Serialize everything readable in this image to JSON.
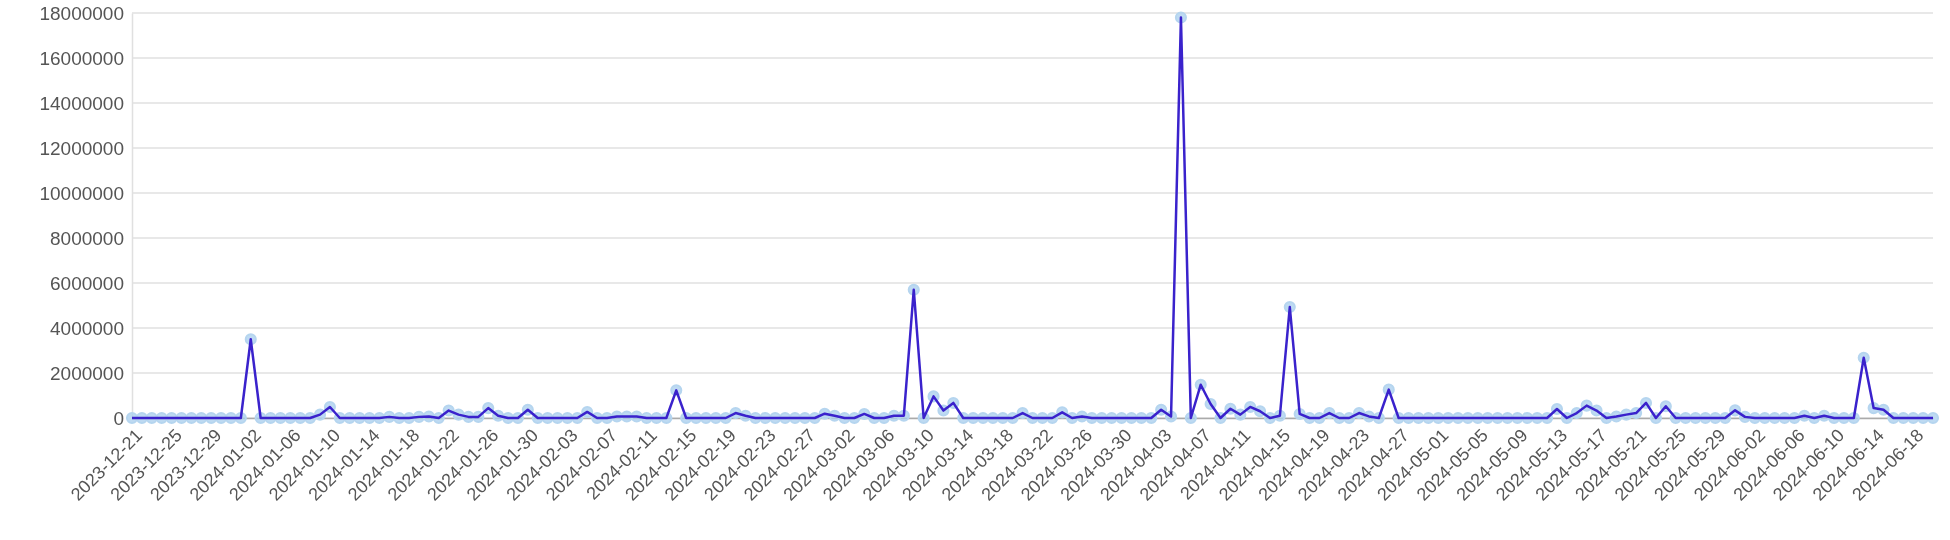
{
  "chart_data": {
    "type": "line",
    "x": [
      "2023-12-21",
      "2023-12-22",
      "2023-12-23",
      "2023-12-24",
      "2023-12-25",
      "2023-12-26",
      "2023-12-27",
      "2023-12-28",
      "2023-12-29",
      "2023-12-30",
      "2023-12-31",
      "2024-01-01",
      "2024-01-02",
      "2024-01-03",
      "2024-01-04",
      "2024-01-05",
      "2024-01-06",
      "2024-01-07",
      "2024-01-08",
      "2024-01-09",
      "2024-01-10",
      "2024-01-11",
      "2024-01-12",
      "2024-01-13",
      "2024-01-14",
      "2024-01-15",
      "2024-01-16",
      "2024-01-17",
      "2024-01-18",
      "2024-01-19",
      "2024-01-20",
      "2024-01-21",
      "2024-01-22",
      "2024-01-23",
      "2024-01-24",
      "2024-01-25",
      "2024-01-26",
      "2024-01-27",
      "2024-01-28",
      "2024-01-29",
      "2024-01-30",
      "2024-01-31",
      "2024-02-01",
      "2024-02-02",
      "2024-02-03",
      "2024-02-04",
      "2024-02-05",
      "2024-02-06",
      "2024-02-07",
      "2024-02-08",
      "2024-02-09",
      "2024-02-10",
      "2024-02-11",
      "2024-02-12",
      "2024-02-13",
      "2024-02-14",
      "2024-02-15",
      "2024-02-16",
      "2024-02-17",
      "2024-02-18",
      "2024-02-19",
      "2024-02-20",
      "2024-02-21",
      "2024-02-22",
      "2024-02-23",
      "2024-02-24",
      "2024-02-25",
      "2024-02-26",
      "2024-02-27",
      "2024-02-28",
      "2024-02-29",
      "2024-03-01",
      "2024-03-02",
      "2024-03-03",
      "2024-03-04",
      "2024-03-05",
      "2024-03-06",
      "2024-03-07",
      "2024-03-08",
      "2024-03-09",
      "2024-03-10",
      "2024-03-11",
      "2024-03-12",
      "2024-03-13",
      "2024-03-14",
      "2024-03-15",
      "2024-03-16",
      "2024-03-17",
      "2024-03-18",
      "2024-03-19",
      "2024-03-20",
      "2024-03-21",
      "2024-03-22",
      "2024-03-23",
      "2024-03-24",
      "2024-03-25",
      "2024-03-26",
      "2024-03-27",
      "2024-03-28",
      "2024-03-29",
      "2024-03-30",
      "2024-03-31",
      "2024-04-01",
      "2024-04-02",
      "2024-04-03",
      "2024-04-04",
      "2024-04-05",
      "2024-04-06",
      "2024-04-07",
      "2024-04-08",
      "2024-04-09",
      "2024-04-10",
      "2024-04-11",
      "2024-04-12",
      "2024-04-13",
      "2024-04-14",
      "2024-04-15",
      "2024-04-16",
      "2024-04-17",
      "2024-04-18",
      "2024-04-19",
      "2024-04-20",
      "2024-04-21",
      "2024-04-22",
      "2024-04-23",
      "2024-04-24",
      "2024-04-25",
      "2024-04-26",
      "2024-04-27",
      "2024-04-28",
      "2024-04-29",
      "2024-04-30",
      "2024-05-01",
      "2024-05-02",
      "2024-05-03",
      "2024-05-04",
      "2024-05-05",
      "2024-05-06",
      "2024-05-07",
      "2024-05-08",
      "2024-05-09",
      "2024-05-10",
      "2024-05-11",
      "2024-05-12",
      "2024-05-13",
      "2024-05-14",
      "2024-05-15",
      "2024-05-16",
      "2024-05-17",
      "2024-05-18",
      "2024-05-19",
      "2024-05-20",
      "2024-05-21",
      "2024-05-22",
      "2024-05-23",
      "2024-05-24",
      "2024-05-25",
      "2024-05-26",
      "2024-05-27",
      "2024-05-28",
      "2024-05-29",
      "2024-05-30",
      "2024-05-31",
      "2024-06-01",
      "2024-06-02",
      "2024-06-03",
      "2024-06-04",
      "2024-06-05",
      "2024-06-06",
      "2024-06-07",
      "2024-06-08",
      "2024-06-09",
      "2024-06-10",
      "2024-06-11",
      "2024-06-12",
      "2024-06-13",
      "2024-06-14",
      "2024-06-15",
      "2024-06-16",
      "2024-06-17",
      "2024-06-18",
      "2024-06-19",
      "2024-06-20"
    ],
    "series": [
      {
        "color": "#3a22cc",
        "values": [
          0,
          0,
          0,
          0,
          0,
          0,
          0,
          0,
          0,
          0,
          0,
          0,
          3500000,
          0,
          0,
          0,
          0,
          0,
          0,
          150000,
          490000,
          0,
          0,
          0,
          0,
          0,
          50000,
          0,
          0,
          50000,
          70000,
          0,
          330000,
          150000,
          50000,
          50000,
          440000,
          100000,
          0,
          0,
          370000,
          0,
          0,
          0,
          0,
          0,
          270000,
          0,
          0,
          70000,
          70000,
          70000,
          0,
          0,
          0,
          1230000,
          0,
          0,
          0,
          0,
          0,
          220000,
          100000,
          0,
          0,
          0,
          0,
          0,
          0,
          0,
          190000,
          100000,
          0,
          0,
          180000,
          0,
          0,
          100000,
          100000,
          5700000,
          0,
          960000,
          330000,
          670000,
          0,
          0,
          0,
          0,
          0,
          0,
          220000,
          0,
          0,
          0,
          250000,
          0,
          70000,
          0,
          0,
          0,
          0,
          0,
          0,
          0,
          370000,
          70000,
          17800000,
          0,
          1480000,
          620000,
          0,
          410000,
          150000,
          490000,
          300000,
          0,
          100000,
          4930000,
          180000,
          0,
          0,
          220000,
          0,
          0,
          220000,
          70000,
          0,
          1260000,
          0,
          0,
          0,
          0,
          0,
          0,
          0,
          0,
          0,
          0,
          0,
          0,
          0,
          0,
          0,
          0,
          400000,
          0,
          220000,
          550000,
          330000,
          0,
          70000,
          150000,
          220000,
          670000,
          0,
          520000,
          0,
          0,
          0,
          0,
          0,
          0,
          340000,
          50000,
          0,
          0,
          0,
          0,
          0,
          100000,
          0,
          100000,
          0,
          0,
          0,
          2680000,
          440000,
          370000,
          0,
          0,
          0,
          0,
          0
        ]
      }
    ],
    "xlim": [
      "2023-12-21",
      "2024-06-20"
    ],
    "xticks": [
      "2023-12-21",
      "2023-12-25",
      "2023-12-29",
      "2024-01-02",
      "2024-01-06",
      "2024-01-10",
      "2024-01-14",
      "2024-01-18",
      "2024-01-22",
      "2024-01-26",
      "2024-01-30",
      "2024-02-03",
      "2024-02-07",
      "2024-02-11",
      "2024-02-15",
      "2024-02-19",
      "2024-02-23",
      "2024-02-27",
      "2024-03-02",
      "2024-03-06",
      "2024-03-10",
      "2024-03-14",
      "2024-03-18",
      "2024-03-22",
      "2024-03-26",
      "2024-03-30",
      "2024-04-03",
      "2024-04-07",
      "2024-04-11",
      "2024-04-15",
      "2024-04-19",
      "2024-04-23",
      "2024-04-27",
      "2024-05-01",
      "2024-05-05",
      "2024-05-09",
      "2024-05-13",
      "2024-05-17",
      "2024-05-21",
      "2024-05-25",
      "2024-05-29",
      "2024-06-02",
      "2024-06-06",
      "2024-06-10",
      "2024-06-14",
      "2024-06-18"
    ],
    "ylim": [
      0,
      18000000
    ],
    "yticks": [
      0,
      2000000,
      4000000,
      6000000,
      8000000,
      10000000,
      12000000,
      14000000,
      16000000,
      18000000
    ],
    "grid": "y",
    "marker": "circle",
    "line_style": "solid"
  }
}
